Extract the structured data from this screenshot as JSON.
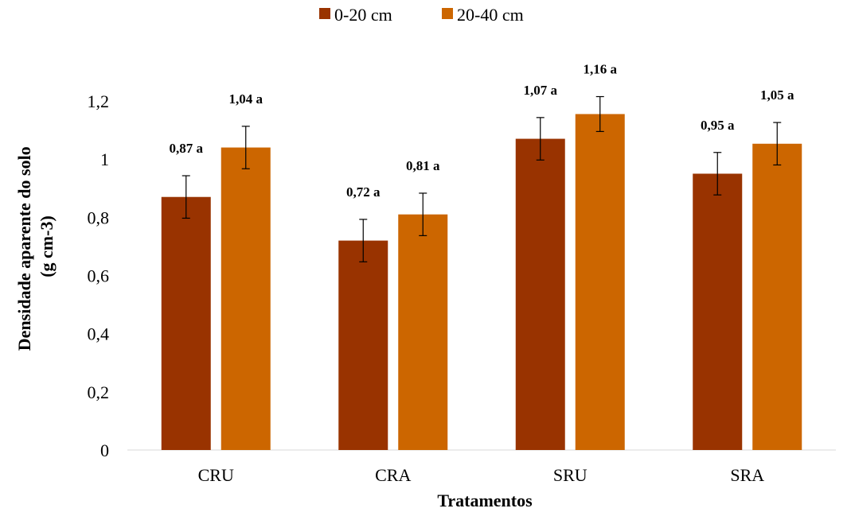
{
  "chart_data": {
    "type": "bar",
    "title": "",
    "categories": [
      "CRU",
      "CRA",
      "SRU",
      "SRA"
    ],
    "series": [
      {
        "name": "0-20 cm",
        "color": "#993300",
        "values": [
          0.87,
          0.72,
          1.07,
          0.95
        ],
        "errors": [
          0.073,
          0.073,
          0.073,
          0.073
        ],
        "labels": [
          "0,87 a",
          "0,72 a",
          "1,07 a",
          "0,95 a"
        ]
      },
      {
        "name": "20-40 cm",
        "color": "#CC6600",
        "values": [
          1.04,
          0.81,
          1.155,
          1.053
        ],
        "errors": [
          0.073,
          0.073,
          0.06,
          0.073
        ],
        "labels": [
          "1,04 a",
          "0,81 a",
          "1,16 a",
          "1,05 a"
        ]
      }
    ],
    "xlabel": "Tratamentos",
    "ylabel": [
      "Densidade aparente do solo",
      "(g cm-3)"
    ],
    "ylim": [
      0,
      1.2
    ],
    "yticks": [
      0,
      0.2,
      0.4,
      0.6,
      0.8,
      1,
      1.2
    ],
    "ytick_labels": [
      "0",
      "0,2",
      "0,4",
      "0,6",
      "0,8",
      "1",
      "1,2"
    ],
    "grid": false,
    "legend_position": "top-center"
  }
}
